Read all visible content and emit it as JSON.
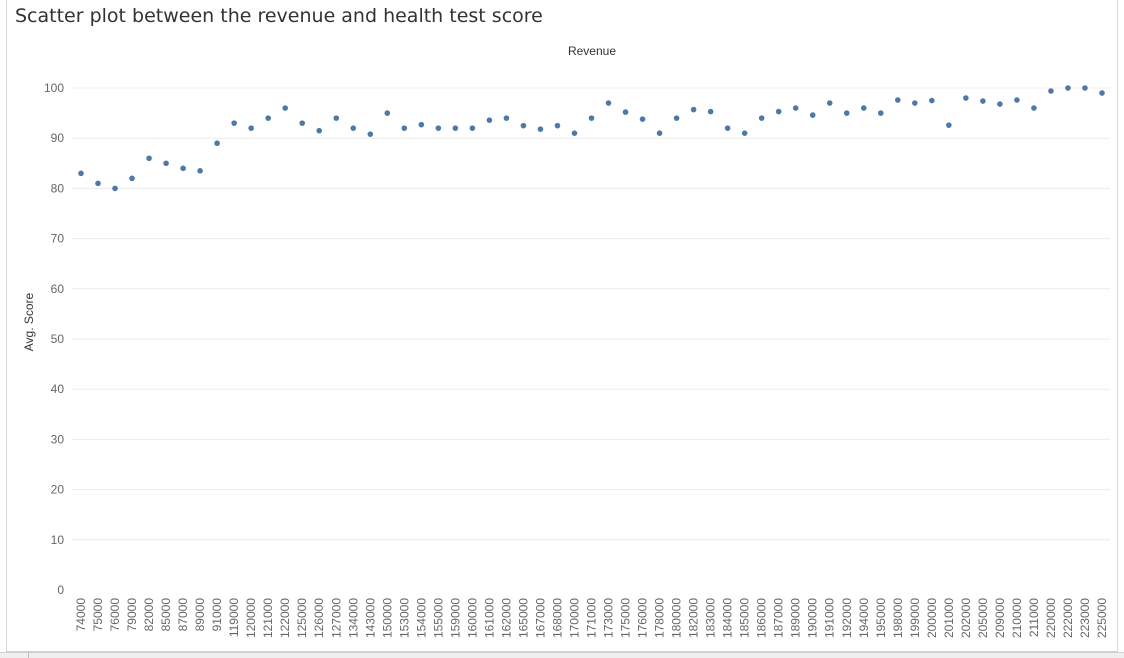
{
  "page": {
    "title": "Scatter plot between the revenue and health test score"
  },
  "chart_data": {
    "type": "scatter",
    "title": "Scatter plot between the revenue and health test score",
    "xlabel": "Revenue",
    "ylabel": "Avg. Score",
    "ylim": [
      0,
      100
    ],
    "yticks": [
      0,
      10,
      20,
      30,
      40,
      50,
      60,
      70,
      80,
      90,
      100
    ],
    "grid": true,
    "x_axis_categorical": true,
    "point_color": "#4e79a7",
    "x": [
      "74000",
      "75000",
      "76000",
      "79000",
      "82000",
      "85000",
      "87000",
      "89000",
      "91000",
      "119000",
      "120000",
      "121000",
      "122000",
      "125000",
      "126000",
      "127000",
      "134000",
      "143000",
      "150000",
      "153000",
      "154000",
      "155000",
      "159000",
      "160000",
      "161000",
      "162000",
      "165000",
      "167000",
      "168000",
      "170000",
      "171000",
      "173000",
      "175000",
      "176000",
      "178000",
      "180000",
      "182000",
      "183000",
      "184000",
      "185000",
      "186000",
      "187000",
      "189000",
      "190000",
      "191000",
      "192000",
      "194000",
      "195000",
      "198000",
      "199000",
      "200000",
      "201000",
      "202000",
      "205000",
      "209000",
      "210000",
      "211000",
      "220000",
      "222000",
      "223000",
      "225000"
    ],
    "y": [
      83.0,
      81.0,
      80.0,
      82.0,
      86.0,
      85.0,
      84.0,
      83.5,
      89.0,
      93.0,
      92.0,
      94.0,
      96.0,
      93.0,
      91.5,
      94.0,
      92.0,
      90.8,
      95.0,
      92.0,
      92.7,
      92.0,
      92.0,
      92.0,
      93.6,
      94.0,
      92.5,
      91.8,
      92.5,
      91.0,
      94.0,
      97.0,
      95.2,
      93.8,
      91.0,
      94.0,
      95.7,
      95.3,
      92.0,
      91.0,
      94.0,
      95.3,
      96.0,
      94.6,
      97.0,
      95.0,
      96.0,
      95.0,
      97.6,
      97.0,
      97.5,
      92.6,
      98.0,
      97.4,
      96.8,
      97.6,
      96.0,
      99.4,
      100.0,
      100.0,
      99.0
    ]
  }
}
